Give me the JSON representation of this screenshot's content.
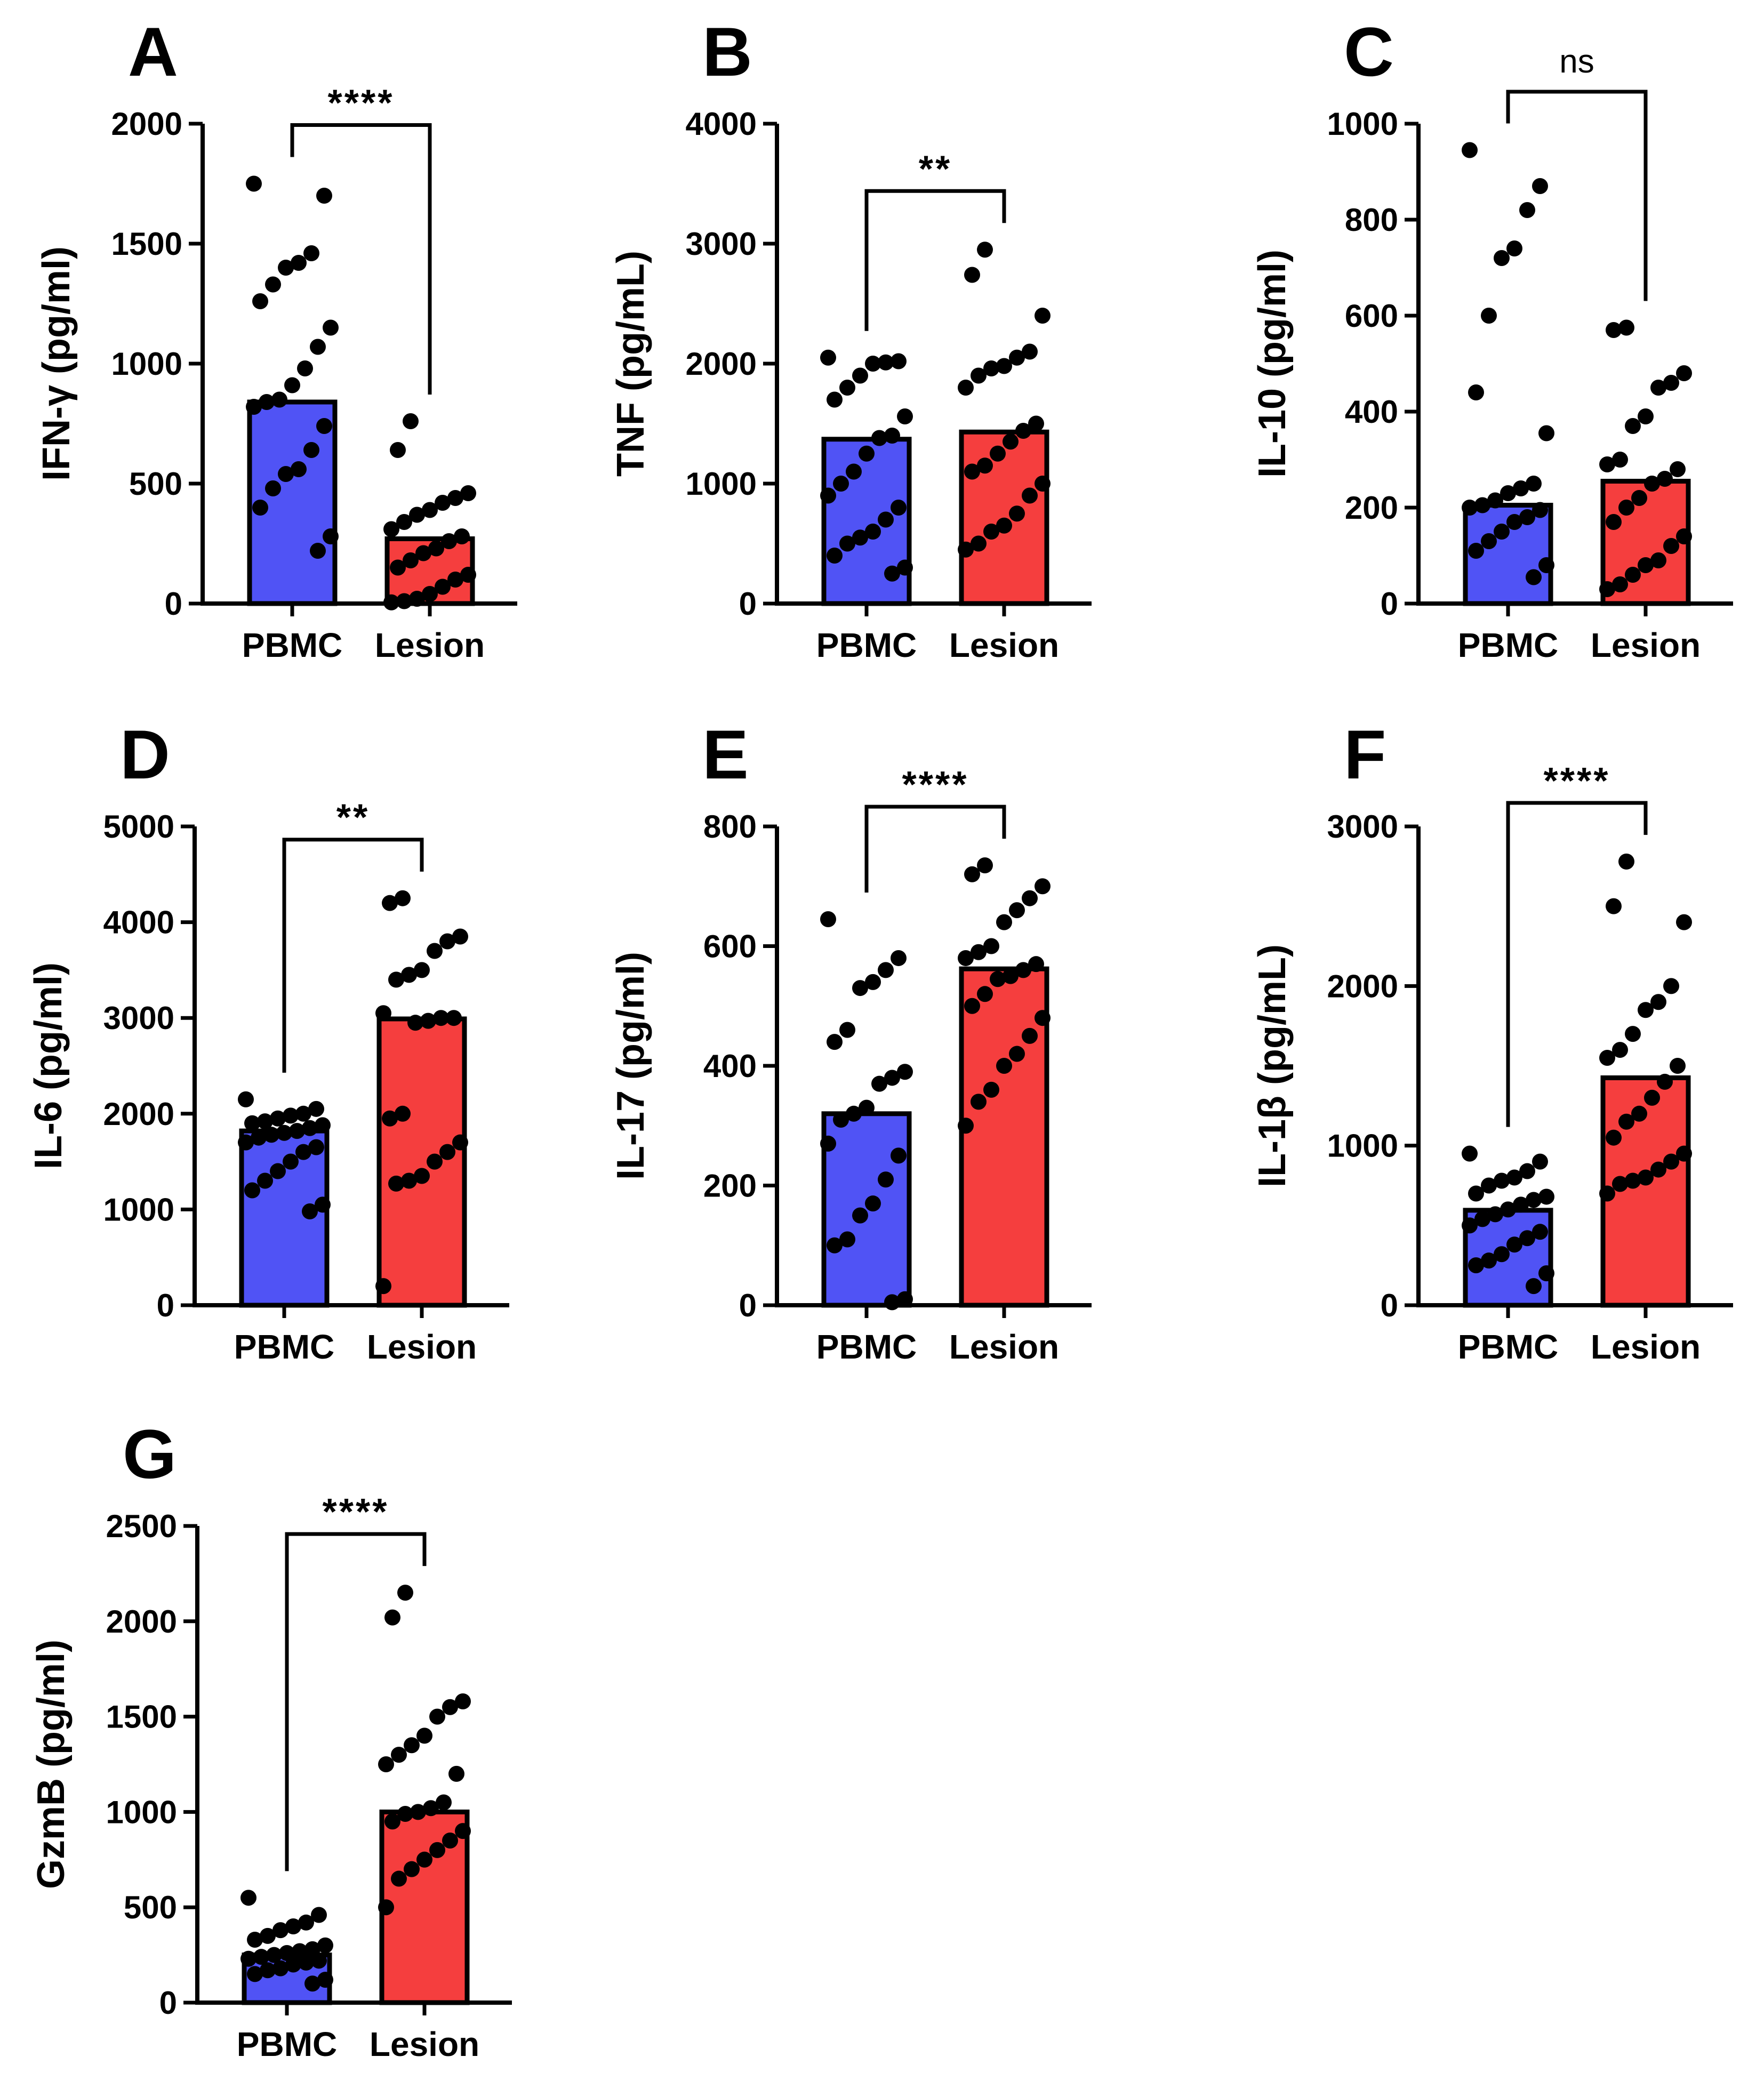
{
  "figure": {
    "title": ""
  },
  "colors": {
    "pbmc": "#5053f5",
    "lesion": "#f53e3e",
    "axis": "#000000",
    "dot": "#000000"
  },
  "chart_data": [
    {
      "panel": "A",
      "type": "bar",
      "title": "",
      "xlabel": "",
      "ylabel": "IFN-γ (pg/ml)",
      "ylim": [
        0,
        2000
      ],
      "yticks": [
        0,
        500,
        1000,
        1500,
        2000
      ],
      "categories": [
        "PBMC",
        "Lesion"
      ],
      "series": [
        {
          "name": "mean",
          "values": [
            840,
            270
          ]
        }
      ],
      "points": [
        [
          1750,
          1700,
          1460,
          1420,
          1400,
          1330,
          1260,
          1150,
          1070,
          980,
          910,
          850,
          840,
          820,
          740,
          640,
          560,
          540,
          480,
          400,
          280,
          220
        ],
        [
          760,
          640,
          460,
          440,
          420,
          390,
          370,
          340,
          310,
          280,
          260,
          230,
          210,
          180,
          150,
          120,
          100,
          70,
          40,
          20,
          10,
          5
        ]
      ],
      "significance": "****"
    },
    {
      "panel": "B",
      "type": "bar",
      "title": "",
      "xlabel": "",
      "ylabel": "TNF (pg/mL)",
      "ylim": [
        0,
        4000
      ],
      "yticks": [
        0,
        1000,
        2000,
        3000,
        4000
      ],
      "categories": [
        "PBMC",
        "Lesion"
      ],
      "series": [
        {
          "name": "mean",
          "values": [
            1370,
            1430
          ]
        }
      ],
      "points": [
        [
          2050,
          2020,
          2010,
          2000,
          1900,
          1800,
          1700,
          1560,
          1400,
          1380,
          1250,
          1100,
          1000,
          900,
          800,
          700,
          600,
          550,
          500,
          400,
          300,
          250
        ],
        [
          2950,
          2740,
          2400,
          2100,
          2050,
          1980,
          1960,
          1900,
          1800,
          1500,
          1440,
          1350,
          1250,
          1150,
          1100,
          1000,
          900,
          750,
          650,
          600,
          500,
          450
        ]
      ],
      "significance": "**"
    },
    {
      "panel": "C",
      "type": "bar",
      "title": "",
      "xlabel": "",
      "ylabel": "IL-10 (pg/ml)",
      "ylim": [
        0,
        1000
      ],
      "yticks": [
        0,
        200,
        400,
        600,
        800,
        1000
      ],
      "categories": [
        "PBMC",
        "Lesion"
      ],
      "series": [
        {
          "name": "mean",
          "values": [
            205,
            255
          ]
        }
      ],
      "points": [
        [
          945,
          870,
          820,
          740,
          720,
          600,
          440,
          355,
          250,
          240,
          230,
          215,
          205,
          200,
          195,
          180,
          170,
          150,
          130,
          110,
          80,
          55
        ],
        [
          575,
          570,
          480,
          460,
          450,
          390,
          370,
          300,
          290,
          280,
          260,
          250,
          220,
          200,
          170,
          140,
          120,
          90,
          80,
          60,
          40,
          30
        ]
      ],
      "significance": "ns"
    },
    {
      "panel": "D",
      "type": "bar",
      "title": "",
      "xlabel": "",
      "ylabel": "IL-6 (pg/ml)",
      "ylim": [
        0,
        5000
      ],
      "yticks": [
        0,
        1000,
        2000,
        3000,
        4000,
        5000
      ],
      "categories": [
        "PBMC",
        "Lesion"
      ],
      "series": [
        {
          "name": "mean",
          "values": [
            1820,
            2990
          ]
        }
      ],
      "points": [
        [
          2150,
          2050,
          2000,
          1980,
          1950,
          1920,
          1900,
          1880,
          1850,
          1820,
          1800,
          1780,
          1750,
          1700,
          1650,
          1600,
          1500,
          1400,
          1300,
          1200,
          1050,
          980
        ],
        [
          4250,
          4200,
          3850,
          3800,
          3700,
          3500,
          3450,
          3400,
          3050,
          3000,
          3000,
          2970,
          2950,
          2000,
          1950,
          1700,
          1600,
          1500,
          1350,
          1300,
          1270,
          200
        ]
      ],
      "significance": "**"
    },
    {
      "panel": "E",
      "type": "bar",
      "title": "",
      "xlabel": "",
      "ylabel": "IL-17 (pg/ml)",
      "ylim": [
        0,
        800
      ],
      "yticks": [
        0,
        200,
        400,
        600,
        800
      ],
      "categories": [
        "PBMC",
        "Lesion"
      ],
      "series": [
        {
          "name": "mean",
          "values": [
            320,
            562
          ]
        }
      ],
      "points": [
        [
          645,
          580,
          560,
          540,
          530,
          460,
          440,
          390,
          380,
          370,
          330,
          320,
          310,
          270,
          250,
          210,
          170,
          150,
          110,
          100,
          10,
          5
        ],
        [
          735,
          720,
          700,
          680,
          660,
          640,
          600,
          590,
          580,
          570,
          560,
          550,
          545,
          520,
          500,
          480,
          450,
          420,
          400,
          360,
          340,
          300
        ]
      ],
      "significance": "****"
    },
    {
      "panel": "F",
      "type": "bar",
      "title": "",
      "xlabel": "",
      "ylabel": "IL-1β (pg/mL)",
      "ylim": [
        0,
        3000
      ],
      "yticks": [
        0,
        1000,
        2000,
        3000
      ],
      "categories": [
        "PBMC",
        "Lesion"
      ],
      "series": [
        {
          "name": "mean",
          "values": [
            595,
            1425
          ]
        }
      ],
      "points": [
        [
          950,
          900,
          840,
          800,
          780,
          750,
          700,
          680,
          660,
          630,
          600,
          570,
          540,
          500,
          460,
          420,
          380,
          320,
          280,
          250,
          200,
          120
        ],
        [
          2780,
          2500,
          2400,
          2000,
          1900,
          1850,
          1700,
          1600,
          1550,
          1500,
          1400,
          1300,
          1200,
          1150,
          1050,
          950,
          900,
          850,
          800,
          780,
          760,
          700
        ]
      ],
      "significance": "****"
    },
    {
      "panel": "G",
      "type": "bar",
      "title": "",
      "xlabel": "",
      "ylabel": "GzmB (pg/ml)",
      "ylim": [
        0,
        2500
      ],
      "yticks": [
        0,
        500,
        1000,
        1500,
        2000,
        2500
      ],
      "categories": [
        "PBMC",
        "Lesion"
      ],
      "series": [
        {
          "name": "mean",
          "values": [
            250,
            1000
          ]
        }
      ],
      "points": [
        [
          550,
          460,
          420,
          400,
          380,
          350,
          330,
          300,
          280,
          270,
          260,
          250,
          240,
          230,
          220,
          210,
          200,
          180,
          170,
          150,
          120,
          100
        ],
        [
          2150,
          2020,
          1580,
          1550,
          1500,
          1400,
          1350,
          1300,
          1250,
          1200,
          1050,
          1020,
          1000,
          990,
          950,
          900,
          850,
          800,
          750,
          700,
          650,
          500
        ]
      ],
      "significance": "****"
    }
  ]
}
